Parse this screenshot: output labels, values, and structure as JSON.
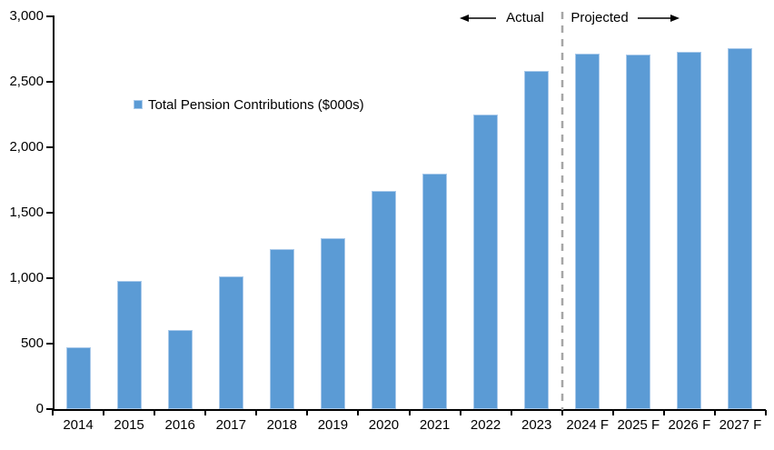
{
  "chart_data": {
    "type": "bar",
    "title": "",
    "legend_label": "Total Pension Contributions ($000s)",
    "legend_position": "inside-upper-left",
    "categories": [
      "2014",
      "2015",
      "2016",
      "2017",
      "2018",
      "2019",
      "2020",
      "2021",
      "2022",
      "2023",
      "2024 F",
      "2025 F",
      "2026 F",
      "2027 F"
    ],
    "values": [
      470,
      980,
      605,
      1015,
      1220,
      1305,
      1665,
      1800,
      2250,
      2580,
      2715,
      2705,
      2730,
      2755
    ],
    "xlabel": "",
    "ylabel": "",
    "ylim": [
      0,
      3000
    ],
    "ytick_step": 500,
    "ytick_labels": [
      "0",
      "500",
      "1,000",
      "1,500",
      "2,000",
      "2,500",
      "3,000"
    ],
    "grid": false,
    "bar_color": "#5B9BD5",
    "bar_edge_color": "#A9C9EA",
    "axis_color": "#000000",
    "annotations": {
      "actual_label": "Actual",
      "projected_label": "Projected",
      "divider_between": [
        "2023",
        "2024 F"
      ],
      "divider_color": "#A6A6A6",
      "arrow_color": "#000000"
    }
  }
}
